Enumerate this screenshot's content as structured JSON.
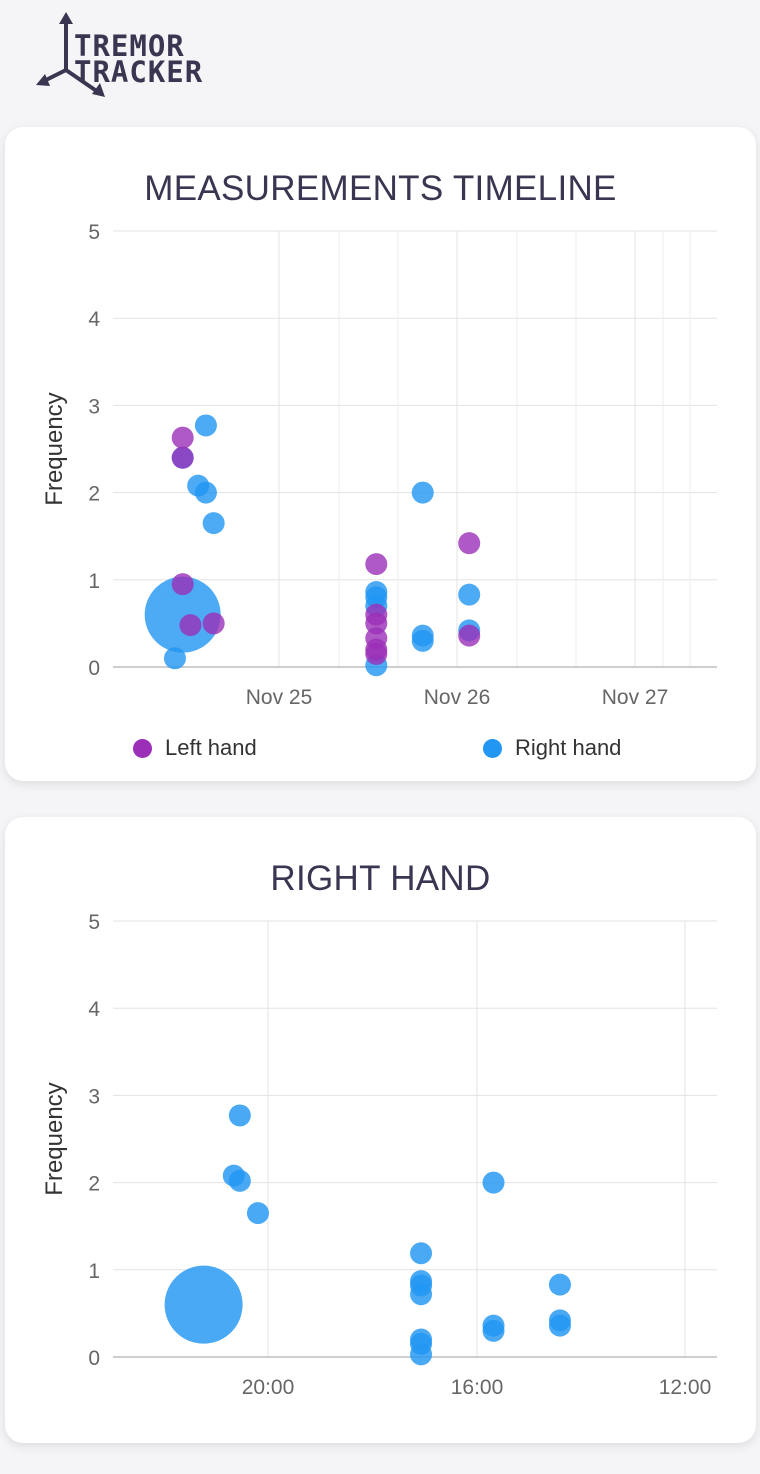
{
  "app": {
    "logo_line1": "TREMOR",
    "logo_line2": "TRACKER"
  },
  "colors": {
    "left": "#9b2fb8",
    "right": "#2196f3",
    "overlap": "#2b2bf0",
    "text": "#3a3550",
    "grid": "#e3e3e3"
  },
  "timeline": {
    "chart_data": {
      "type": "scatter",
      "title": "MEASUREMENTS TIMELINE",
      "ylabel": "Frequency",
      "xlabel": "",
      "ylim": [
        0,
        5
      ],
      "yticks": [
        0,
        1,
        2,
        3,
        4,
        5
      ],
      "xticks": [
        "Nov 25",
        "Nov 26",
        "Nov 27"
      ],
      "xlim": [
        "2023-11-24 01:00",
        "2023-11-27 07:00"
      ],
      "grid": true,
      "legend": "bottom",
      "series": [
        {
          "name": "Left hand",
          "points": [
            {
              "x": "2023-11-24 10:00",
              "y": 2.63
            },
            {
              "x": "2023-11-24 10:00",
              "y": 0.95
            },
            {
              "x": "2023-11-24 10:00",
              "y": 2.4
            },
            {
              "x": "2023-11-24 11:00",
              "y": 0.48
            },
            {
              "x": "2023-11-24 14:00",
              "y": 0.5
            },
            {
              "x": "2023-11-25 11:00",
              "y": 1.18
            },
            {
              "x": "2023-11-25 11:00",
              "y": 0.6
            },
            {
              "x": "2023-11-25 11:00",
              "y": 0.5
            },
            {
              "x": "2023-11-25 11:00",
              "y": 0.33
            },
            {
              "x": "2023-11-25 11:00",
              "y": 0.2
            },
            {
              "x": "2023-11-25 11:00",
              "y": 0.15
            },
            {
              "x": "2023-11-25 23:00",
              "y": 1.42
            },
            {
              "x": "2023-11-25 23:00",
              "y": 0.36
            }
          ]
        },
        {
          "name": "Right hand",
          "points": [
            {
              "x": "2023-11-24 13:00",
              "y": 2.77
            },
            {
              "x": "2023-11-24 12:00",
              "y": 2.08
            },
            {
              "x": "2023-11-24 13:00",
              "y": 2.0
            },
            {
              "x": "2023-11-24 14:00",
              "y": 1.65
            },
            {
              "x": "2023-11-24 10:00",
              "y": 2.4
            },
            {
              "x": "2023-11-24 10:00",
              "y": 0.6,
              "large": true
            },
            {
              "x": "2023-11-24 09:00",
              "y": 0.1
            },
            {
              "x": "2023-11-25 11:00",
              "y": 0.86
            },
            {
              "x": "2023-11-25 11:00",
              "y": 0.8
            },
            {
              "x": "2023-11-25 11:00",
              "y": 0.7
            },
            {
              "x": "2023-11-25 11:00",
              "y": 0.02
            },
            {
              "x": "2023-11-25 17:00",
              "y": 2.0
            },
            {
              "x": "2023-11-25 17:00",
              "y": 0.36
            },
            {
              "x": "2023-11-25 17:00",
              "y": 0.3
            },
            {
              "x": "2023-11-25 23:00",
              "y": 0.83
            },
            {
              "x": "2023-11-25 23:00",
              "y": 0.42
            }
          ]
        }
      ]
    }
  },
  "right_hand": {
    "chart_data": {
      "type": "scatter",
      "title": "RIGHT HAND",
      "ylabel": "Frequency",
      "xlabel": "",
      "ylim": [
        0,
        5
      ],
      "yticks": [
        0,
        1,
        2,
        3,
        4,
        5
      ],
      "xticks": [
        "20:00",
        "16:00",
        "12:00"
      ],
      "grid": true,
      "series": [
        {
          "name": "",
          "points": [
            {
              "x": 0.15,
              "y": 0.6,
              "large": true
            },
            {
              "x": 0.21,
              "y": 2.77
            },
            {
              "x": 0.2,
              "y": 2.08
            },
            {
              "x": 0.21,
              "y": 2.02
            },
            {
              "x": 0.24,
              "y": 1.65
            },
            {
              "x": 0.51,
              "y": 1.19
            },
            {
              "x": 0.51,
              "y": 0.87
            },
            {
              "x": 0.51,
              "y": 0.82
            },
            {
              "x": 0.51,
              "y": 0.72
            },
            {
              "x": 0.51,
              "y": 0.2
            },
            {
              "x": 0.51,
              "y": 0.15
            },
            {
              "x": 0.51,
              "y": 0.03
            },
            {
              "x": 0.63,
              "y": 2.0
            },
            {
              "x": 0.63,
              "y": 0.36
            },
            {
              "x": 0.63,
              "y": 0.3
            },
            {
              "x": 0.74,
              "y": 0.83
            },
            {
              "x": 0.74,
              "y": 0.42
            },
            {
              "x": 0.74,
              "y": 0.36
            }
          ]
        }
      ]
    }
  }
}
